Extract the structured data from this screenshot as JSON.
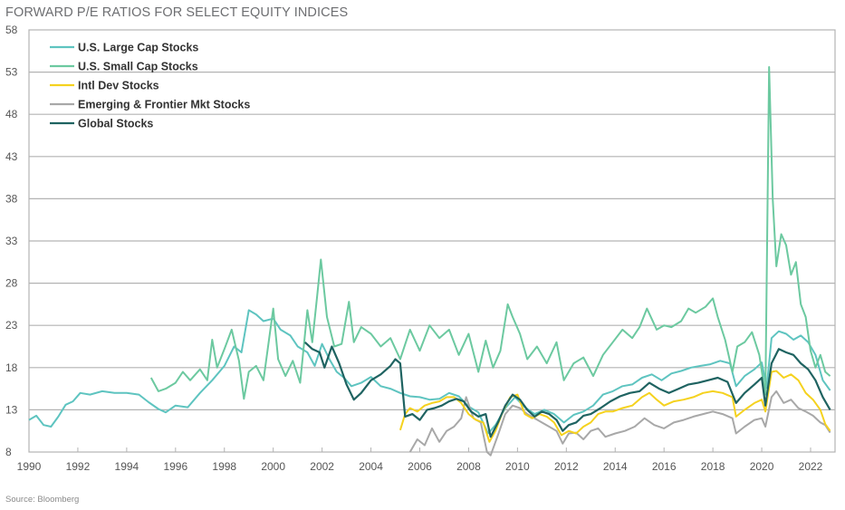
{
  "chart_data": {
    "type": "line",
    "title": "FORWARD P/E RATIOS FOR SELECT EQUITY INDICES",
    "source": "Source: Bloomberg",
    "xlabel": "",
    "ylabel": "",
    "xlim": [
      1990,
      2022.95
    ],
    "ylim": [
      8,
      58
    ],
    "grid": true,
    "legend_position": "top-left",
    "yticks": [
      "58",
      "53",
      "48",
      "43",
      "38",
      "33",
      "28",
      "23",
      "18",
      "13",
      "8"
    ],
    "xticks": [
      "1990",
      "1992",
      "1994",
      "1996",
      "1998",
      "2000",
      "2002",
      "2004",
      "2006",
      "2008",
      "2010",
      "2012",
      "2014",
      "2016",
      "2018",
      "2020",
      "2022"
    ],
    "series": [
      {
        "name": "U.S. Large Cap Stocks",
        "color": "#5ec4c0",
        "x": [
          1990.0,
          1990.3,
          1990.6,
          1990.9,
          1991.2,
          1991.5,
          1991.8,
          1992.1,
          1992.5,
          1993.0,
          1993.5,
          1994.0,
          1994.5,
          1994.9,
          1995.3,
          1995.6,
          1996.0,
          1996.5,
          1997.0,
          1997.5,
          1998.0,
          1998.4,
          1998.7,
          1999.0,
          1999.3,
          1999.6,
          2000.0,
          2000.3,
          2000.7,
          2001.0,
          2001.4,
          2001.7,
          2002.0,
          2002.3,
          2002.6,
          2002.9,
          2003.2,
          2003.6,
          2004.0,
          2004.4,
          2004.8,
          2005.2,
          2005.6,
          2006.0,
          2006.4,
          2006.8,
          2007.2,
          2007.6,
          2008.0,
          2008.4,
          2008.8,
          2009.1,
          2009.5,
          2009.9,
          2010.3,
          2010.7,
          2011.1,
          2011.5,
          2011.9,
          2012.3,
          2012.7,
          2013.1,
          2013.5,
          2013.9,
          2014.3,
          2014.7,
          2015.1,
          2015.5,
          2015.9,
          2016.3,
          2016.7,
          2017.1,
          2017.5,
          2017.9,
          2018.3,
          2018.7,
          2018.95,
          2019.3,
          2019.7,
          2020.0,
          2020.2,
          2020.4,
          2020.7,
          2021.0,
          2021.3,
          2021.6,
          2021.9,
          2022.2,
          2022.5,
          2022.8
        ],
        "values": [
          11.8,
          12.3,
          11.2,
          11.0,
          12.2,
          13.6,
          14.0,
          15.0,
          14.8,
          15.2,
          15.0,
          15.0,
          14.8,
          13.9,
          13.1,
          12.7,
          13.5,
          13.3,
          15.0,
          16.5,
          18.2,
          20.5,
          19.8,
          24.8,
          24.3,
          23.5,
          23.8,
          22.5,
          21.8,
          20.5,
          19.8,
          18.2,
          20.8,
          19.0,
          17.5,
          16.8,
          15.8,
          16.2,
          16.9,
          15.8,
          15.5,
          15.0,
          14.6,
          14.5,
          14.2,
          14.3,
          15.0,
          14.6,
          13.4,
          12.7,
          10.2,
          11.2,
          13.2,
          14.5,
          13.3,
          12.5,
          13.0,
          12.5,
          11.5,
          12.4,
          12.8,
          13.5,
          14.8,
          15.2,
          15.8,
          16.0,
          16.8,
          17.2,
          16.5,
          17.3,
          17.6,
          18.0,
          18.2,
          18.4,
          18.8,
          18.5,
          15.8,
          17.0,
          17.8,
          18.6,
          15.6,
          21.5,
          22.3,
          22.0,
          21.3,
          21.8,
          21.0,
          19.5,
          16.5,
          15.3
        ]
      },
      {
        "name": "U.S. Small Cap Stocks",
        "color": "#6cc9a0",
        "x": [
          1995.0,
          1995.3,
          1995.6,
          1996.0,
          1996.3,
          1996.6,
          1997.0,
          1997.3,
          1997.5,
          1997.7,
          1998.0,
          1998.3,
          1998.6,
          1998.8,
          1999.0,
          1999.3,
          1999.6,
          2000.0,
          2000.2,
          2000.5,
          2000.8,
          2001.1,
          2001.4,
          2001.6,
          2001.8,
          2001.95,
          2002.2,
          2002.5,
          2002.8,
          2003.1,
          2003.3,
          2003.6,
          2004.0,
          2004.4,
          2004.8,
          2005.2,
          2005.6,
          2006.0,
          2006.4,
          2006.8,
          2007.2,
          2007.6,
          2008.0,
          2008.4,
          2008.7,
          2009.0,
          2009.3,
          2009.6,
          2009.8,
          2010.1,
          2010.4,
          2010.8,
          2011.2,
          2011.6,
          2011.9,
          2012.3,
          2012.7,
          2013.1,
          2013.5,
          2013.9,
          2014.3,
          2014.7,
          2015.0,
          2015.3,
          2015.7,
          2016.0,
          2016.3,
          2016.7,
          2017.0,
          2017.3,
          2017.7,
          2018.0,
          2018.2,
          2018.5,
          2018.8,
          2019.0,
          2019.3,
          2019.6,
          2019.9,
          2020.15,
          2020.3,
          2020.45,
          2020.6,
          2020.8,
          2021.0,
          2021.2,
          2021.4,
          2021.6,
          2021.8,
          2022.0,
          2022.2,
          2022.4,
          2022.6,
          2022.8
        ],
        "values": [
          16.8,
          15.2,
          15.5,
          16.2,
          17.5,
          16.5,
          17.8,
          16.5,
          21.3,
          18.0,
          20.2,
          22.5,
          18.8,
          14.3,
          17.5,
          18.2,
          16.5,
          25.0,
          19.0,
          17.0,
          18.8,
          16.2,
          24.8,
          21.0,
          26.5,
          30.8,
          24.0,
          20.5,
          20.8,
          25.8,
          21.0,
          22.8,
          22.0,
          20.5,
          21.5,
          19.0,
          22.5,
          20.0,
          23.0,
          21.5,
          22.5,
          19.5,
          22.0,
          17.5,
          21.2,
          18.0,
          20.0,
          25.5,
          24.0,
          22.0,
          19.0,
          20.5,
          18.5,
          21.0,
          16.5,
          18.5,
          19.2,
          17.0,
          19.5,
          21.0,
          22.5,
          21.5,
          22.8,
          25.0,
          22.5,
          23.0,
          22.8,
          23.5,
          25.0,
          24.5,
          25.2,
          26.2,
          24.0,
          21.3,
          17.5,
          20.5,
          21.0,
          22.2,
          19.5,
          14.8,
          53.6,
          38.0,
          30.0,
          33.8,
          32.5,
          29.0,
          30.5,
          25.5,
          24.0,
          20.0,
          18.0,
          19.5,
          17.5,
          17.0
        ]
      },
      {
        "name": "Intl Dev Stocks",
        "color": "#f5d21f",
        "x": [
          2005.2,
          2005.4,
          2005.6,
          2005.9,
          2006.2,
          2006.5,
          2006.8,
          2007.1,
          2007.4,
          2007.7,
          2008.0,
          2008.3,
          2008.6,
          2008.85,
          2009.1,
          2009.4,
          2009.7,
          2010.0,
          2010.3,
          2010.6,
          2010.9,
          2011.2,
          2011.5,
          2011.8,
          2012.1,
          2012.4,
          2012.7,
          2013.0,
          2013.3,
          2013.6,
          2013.9,
          2014.3,
          2014.7,
          2015.1,
          2015.4,
          2015.7,
          2016.0,
          2016.4,
          2016.8,
          2017.2,
          2017.6,
          2018.0,
          2018.4,
          2018.8,
          2018.95,
          2019.3,
          2019.7,
          2020.0,
          2020.15,
          2020.4,
          2020.6,
          2020.9,
          2021.2,
          2021.5,
          2021.8,
          2022.1,
          2022.4,
          2022.6,
          2022.8
        ],
        "values": [
          10.6,
          12.5,
          13.2,
          12.8,
          13.5,
          13.8,
          14.0,
          14.5,
          14.5,
          13.8,
          12.5,
          11.8,
          11.5,
          9.2,
          10.5,
          12.8,
          14.5,
          14.8,
          12.5,
          12.0,
          12.5,
          12.2,
          11.5,
          10.0,
          10.5,
          10.2,
          11.0,
          11.5,
          12.5,
          12.8,
          12.8,
          13.2,
          13.5,
          14.5,
          15.0,
          14.2,
          13.5,
          14.0,
          14.2,
          14.5,
          15.0,
          15.2,
          15.0,
          14.5,
          12.2,
          13.0,
          13.8,
          14.2,
          12.8,
          17.5,
          17.6,
          16.8,
          17.2,
          16.5,
          15.0,
          14.2,
          13.0,
          11.3,
          10.5
        ]
      },
      {
        "name": "Emerging & Frontier Mkt Stocks",
        "color": "#a8a8a8",
        "x": [
          2005.6,
          2005.9,
          2006.2,
          2006.5,
          2006.8,
          2007.1,
          2007.4,
          2007.7,
          2007.9,
          2008.2,
          2008.5,
          2008.75,
          2008.9,
          2009.2,
          2009.5,
          2009.8,
          2010.1,
          2010.4,
          2010.7,
          2011.0,
          2011.3,
          2011.6,
          2011.85,
          2012.1,
          2012.4,
          2012.7,
          2013.0,
          2013.3,
          2013.6,
          2014.0,
          2014.4,
          2014.8,
          2015.2,
          2015.6,
          2016.0,
          2016.4,
          2016.8,
          2017.2,
          2017.6,
          2018.0,
          2018.4,
          2018.8,
          2018.95,
          2019.3,
          2019.7,
          2020.0,
          2020.15,
          2020.4,
          2020.6,
          2020.9,
          2021.2,
          2021.5,
          2021.8,
          2022.1,
          2022.4,
          2022.6,
          2022.8
        ],
        "values": [
          8.0,
          9.5,
          8.8,
          10.8,
          9.2,
          10.5,
          11.0,
          12.0,
          14.5,
          12.0,
          11.5,
          8.0,
          7.6,
          10.0,
          12.5,
          13.5,
          13.2,
          12.5,
          12.0,
          11.5,
          11.0,
          10.5,
          9.0,
          10.2,
          10.3,
          9.5,
          10.5,
          10.8,
          9.8,
          10.2,
          10.5,
          11.0,
          12.0,
          11.2,
          10.8,
          11.5,
          11.8,
          12.2,
          12.5,
          12.8,
          12.5,
          12.0,
          10.2,
          11.0,
          11.8,
          12.0,
          11.0,
          14.5,
          15.2,
          13.8,
          14.2,
          13.2,
          12.8,
          12.3,
          11.5,
          11.2,
          10.3
        ]
      },
      {
        "name": "Global Stocks",
        "color": "#1f6361",
        "x": [
          2001.3,
          2001.6,
          2001.9,
          2002.1,
          2002.4,
          2002.7,
          2003.0,
          2003.3,
          2003.6,
          2004.0,
          2004.4,
          2004.8,
          2005.0,
          2005.2,
          2005.4,
          2005.7,
          2006.0,
          2006.3,
          2006.6,
          2006.9,
          2007.2,
          2007.5,
          2007.8,
          2008.1,
          2008.4,
          2008.7,
          2008.9,
          2009.2,
          2009.5,
          2009.8,
          2010.1,
          2010.4,
          2010.7,
          2011.0,
          2011.3,
          2011.6,
          2011.85,
          2012.1,
          2012.4,
          2012.7,
          2013.0,
          2013.4,
          2013.8,
          2014.2,
          2014.6,
          2015.0,
          2015.4,
          2015.8,
          2016.2,
          2016.6,
          2017.0,
          2017.4,
          2017.8,
          2018.2,
          2018.6,
          2018.95,
          2019.3,
          2019.7,
          2020.0,
          2020.15,
          2020.4,
          2020.7,
          2021.0,
          2021.3,
          2021.6,
          2021.9,
          2022.2,
          2022.5,
          2022.8
        ],
        "values": [
          21.0,
          20.2,
          19.8,
          18.0,
          20.5,
          18.5,
          16.0,
          14.2,
          15.0,
          16.5,
          17.2,
          18.2,
          19.0,
          18.5,
          12.2,
          12.5,
          11.8,
          13.0,
          13.2,
          13.5,
          14.0,
          14.3,
          14.0,
          12.8,
          12.2,
          12.5,
          9.8,
          11.5,
          13.5,
          14.8,
          14.2,
          13.0,
          12.2,
          12.8,
          12.5,
          11.8,
          10.5,
          11.2,
          11.5,
          12.3,
          12.5,
          13.2,
          14.0,
          14.6,
          15.0,
          15.2,
          16.2,
          15.5,
          15.0,
          15.5,
          16.0,
          16.2,
          16.5,
          16.8,
          16.3,
          13.8,
          15.0,
          16.0,
          16.8,
          13.5,
          18.5,
          20.2,
          19.8,
          19.5,
          18.5,
          17.8,
          16.5,
          14.5,
          13.0
        ]
      }
    ]
  }
}
